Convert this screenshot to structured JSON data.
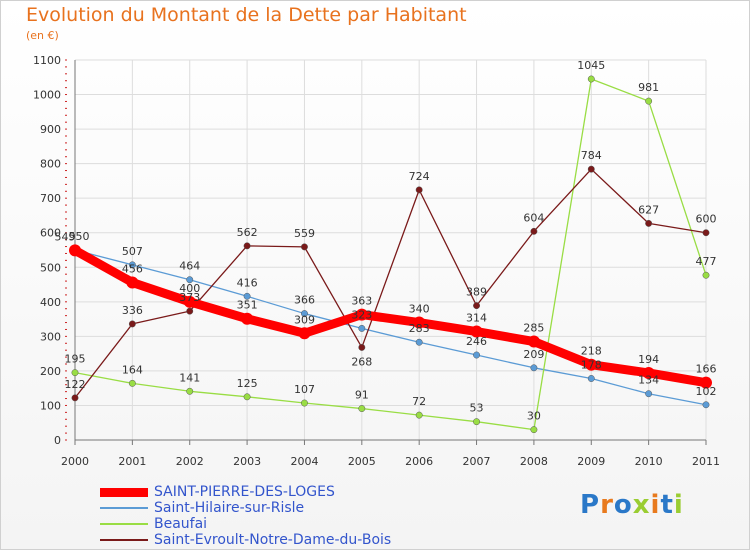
{
  "title": "Evolution du Montant de la Dette par Habitant",
  "subtitle": "(en €)",
  "logo_text": "Proxiti",
  "chart_data": {
    "type": "line",
    "title": "Evolution du Montant de la Dette par Habitant",
    "ylabel": "(en €)",
    "xlabel": "",
    "x": [
      "2000",
      "2001",
      "2002",
      "2003",
      "2004",
      "2005",
      "2006",
      "2007",
      "2008",
      "2009",
      "2010",
      "2011"
    ],
    "ylim": [
      0,
      1100
    ],
    "yticks": [
      0,
      100,
      200,
      300,
      400,
      500,
      600,
      700,
      800,
      900,
      1000,
      1100
    ],
    "grid": true,
    "legend_position": "bottom-left",
    "series": [
      {
        "name": "SAINT-PIERRE-DES-LOGES",
        "color": "#ff0000",
        "values": [
          549,
          456,
          400,
          351,
          309,
          363,
          340,
          314,
          285,
          218,
          194,
          166
        ],
        "labels": [
          "549",
          "456",
          "400",
          "351",
          "309",
          "363",
          "340",
          "314",
          "285",
          "218",
          "194",
          "166"
        ]
      },
      {
        "name": "Saint-Hilaire-sur-Risle",
        "color": "#5b9bd5",
        "values": [
          550,
          507,
          464,
          416,
          366,
          323,
          283,
          246,
          209,
          178,
          134,
          102
        ],
        "labels": [
          "550",
          "507",
          "464",
          "416",
          "366",
          "323",
          "283",
          "246",
          "209",
          "178",
          "134",
          "102"
        ]
      },
      {
        "name": "Beaufai",
        "color": "#99dd44",
        "values": [
          195,
          164,
          141,
          125,
          107,
          91,
          72,
          53,
          30,
          1045,
          981,
          477
        ],
        "labels": [
          "195",
          "164",
          "141",
          "125",
          "107",
          "91",
          "72",
          "53",
          "30",
          "1045",
          "981",
          "477"
        ]
      },
      {
        "name": "Saint-Evroult-Notre-Dame-du-Bois",
        "color": "#7a1a1a",
        "values": [
          122,
          336,
          373,
          562,
          559,
          268,
          724,
          389,
          604,
          784,
          627,
          600
        ],
        "labels": [
          "122",
          "336",
          "373",
          "562",
          "559",
          "268",
          "724",
          "389",
          "604",
          "784",
          "627",
          "600"
        ]
      }
    ]
  }
}
